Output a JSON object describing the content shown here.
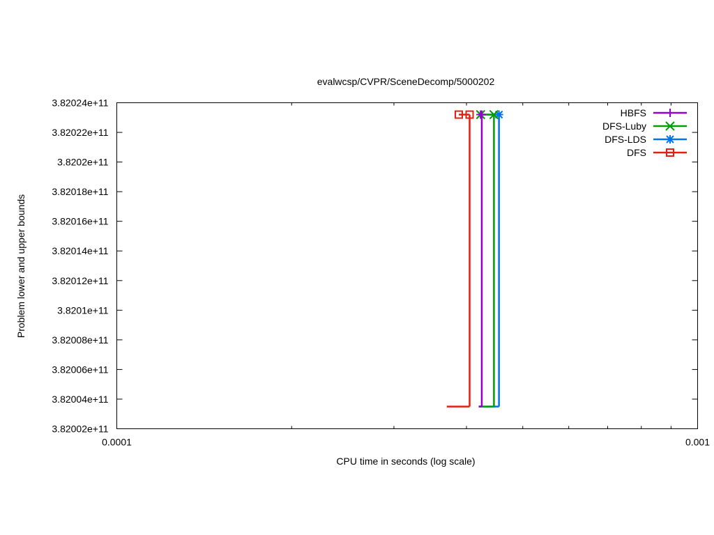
{
  "chart_data": {
    "type": "line",
    "title": "evalwcsp/CVPR/SceneDecomp/5000202",
    "xlabel": "CPU time in seconds (log scale)",
    "ylabel": "Problem lower and upper bounds",
    "x_scale": "log",
    "xlim": [
      0.0001,
      0.001
    ],
    "ylim": [
      382002000000,
      382024000000
    ],
    "x_tick_values": [
      0.0001,
      0.001
    ],
    "x_tick_labels": [
      "0.0001",
      "0.001"
    ],
    "y_tick_values": [
      382002000000,
      382004000000,
      382006000000,
      382008000000,
      382010000000,
      382012000000,
      382014000000,
      382016000000,
      382018000000,
      382020000000,
      382022000000,
      382024000000
    ],
    "y_tick_labels": [
      "3.82002e+11",
      "3.82004e+11",
      "3.82006e+11",
      "3.82008e+11",
      "3.8201e+11",
      "3.82012e+11",
      "3.82014e+11",
      "3.82016e+11",
      "3.82018e+11",
      "3.8202e+11",
      "3.82022e+11",
      "3.82024e+11"
    ],
    "grid": false,
    "legend_position": "top-right",
    "series": [
      {
        "name": "HBFS",
        "color": "#9400d3",
        "marker": "plus",
        "lower_bound": {
          "x": [
            0.00042,
            0.000425
          ],
          "y": [
            382003500000,
            382003500000
          ]
        },
        "upper_bound": {
          "x": [
            0.000423,
            0.000425
          ],
          "y": [
            382023200000,
            382023200000
          ]
        },
        "step_x": 0.000425
      },
      {
        "name": "DFS-Luby",
        "color": "#009e00",
        "marker": "x",
        "lower_bound": {
          "x": [
            0.00042,
            0.000446
          ],
          "y": [
            382003500000,
            382003500000
          ]
        },
        "upper_bound": {
          "x": [
            0.000423,
            0.000446
          ],
          "y": [
            382023200000,
            382023200000
          ]
        },
        "step_x": 0.000446
      },
      {
        "name": "DFS-LDS",
        "color": "#0072ec",
        "marker": "star",
        "lower_bound": {
          "x": [
            0.00042,
            0.000455
          ],
          "y": [
            382003500000,
            382003500000
          ]
        },
        "upper_bound": {
          "x": [
            0.000423,
            0.000455
          ],
          "y": [
            382023200000,
            382023200000
          ]
        },
        "step_x": 0.000455
      },
      {
        "name": "DFS",
        "color": "#e51e10",
        "marker": "square",
        "lower_bound": {
          "x": [
            0.00037,
            0.000405
          ],
          "y": [
            382003500000,
            382003500000
          ]
        },
        "upper_bound": {
          "x": [
            0.000388,
            0.000405
          ],
          "y": [
            382023200000,
            382023200000
          ]
        },
        "step_x": 0.000405
      }
    ]
  }
}
